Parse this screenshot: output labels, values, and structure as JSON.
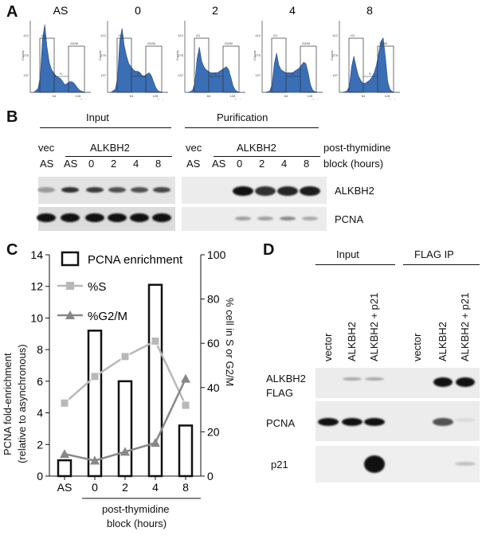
{
  "panelA": {
    "label": "A",
    "histograms": [
      {
        "title": "AS",
        "ticks_y": [
          "412",
          "275",
          "137"
        ],
        "ticks_x": [
          "64",
          "128"
        ],
        "gate_left": "G1",
        "gate_right": "G2/M",
        "gate_mid": "S",
        "xlabel": "FL-Area",
        "ylabel": "Counts"
      },
      {
        "title": "0",
        "ticks_y": [
          "412",
          "275",
          "137"
        ],
        "ticks_x": [
          "64",
          "128"
        ],
        "gate_left": "G1",
        "gate_right": "G2/M",
        "gate_mid": "S",
        "xlabel": "FL-Area",
        "ylabel": "Counts"
      },
      {
        "title": "2",
        "ticks_y": [
          "412",
          "275",
          "137"
        ],
        "ticks_x": [
          "64",
          "128"
        ],
        "gate_left": "G1",
        "gate_right": "G2/M",
        "gate_mid": "S",
        "xlabel": "FL-Area",
        "ylabel": "Counts"
      },
      {
        "title": "4",
        "ticks_y": [
          "412",
          "275",
          "137"
        ],
        "ticks_x": [
          "64",
          "128"
        ],
        "gate_left": "G1",
        "gate_right": "G2/M",
        "gate_mid": "S",
        "xlabel": "FL-Area",
        "ylabel": "Counts"
      },
      {
        "title": "8",
        "ticks_y": [
          "412",
          "275",
          "137"
        ],
        "ticks_x": [
          "64",
          "128"
        ],
        "gate_left": "G1",
        "gate_right": "G2/M",
        "gate_mid": "S",
        "xlabel": "FL-Area",
        "ylabel": "Counts"
      }
    ]
  },
  "panelB": {
    "label": "B",
    "input": "Input",
    "purification": "Purification",
    "vec": "vec",
    "alkbh2": "ALKBH2",
    "lanes_input": [
      "AS",
      "AS",
      "0",
      "2",
      "4",
      "8"
    ],
    "lanes_purif": [
      "AS",
      "AS",
      "0",
      "2",
      "4",
      "8"
    ],
    "time_label_1": "post-thymidine",
    "time_label_2": "block (hours)",
    "row1": "ALKBH2",
    "row2": "PCNA"
  },
  "panelC": {
    "label": "C",
    "legend": [
      "PCNA enrichment",
      "%S",
      "%G2/M"
    ],
    "ylabel_left_1": "PCNA fold-enrichment",
    "ylabel_left_2": "(relative to asynchronous)",
    "ylabel_right": "% cell in S or G2/M",
    "xlabel_1": "post-thymidine",
    "xlabel_2": "block (hours)",
    "colors": {
      "s": "#b8b8b8",
      "g2m": "#888888"
    }
  },
  "chart_data": {
    "type": "bar",
    "categories": [
      "AS",
      "0",
      "2",
      "4",
      "8"
    ],
    "series": [
      {
        "name": "PCNA enrichment",
        "axis": "left",
        "values": [
          1.0,
          9.2,
          6.0,
          12.1,
          3.2
        ]
      },
      {
        "name": "%S",
        "axis": "right",
        "values": [
          33,
          45,
          54,
          61,
          32
        ]
      },
      {
        "name": "%G2/M",
        "axis": "right",
        "values": [
          10,
          7,
          11,
          15,
          44
        ]
      }
    ],
    "ylim_left": [
      0,
      14
    ],
    "yticks_left": [
      0,
      2,
      4,
      6,
      8,
      10,
      12,
      14
    ],
    "ylim_right": [
      0,
      100
    ],
    "yticks_right": [
      0,
      20,
      40,
      60,
      80,
      100
    ]
  },
  "panelD": {
    "label": "D",
    "input": "Input",
    "flag_ip": "FLAG IP",
    "lanes": [
      "vector",
      "ALKBH2",
      "ALKBH2 + p21",
      "vector",
      "ALKBH2",
      "ALKBH2 + p21"
    ],
    "row1_a": "ALKBH2",
    "row1_b": "FLAG",
    "row2": "PCNA",
    "row3": "p21"
  }
}
